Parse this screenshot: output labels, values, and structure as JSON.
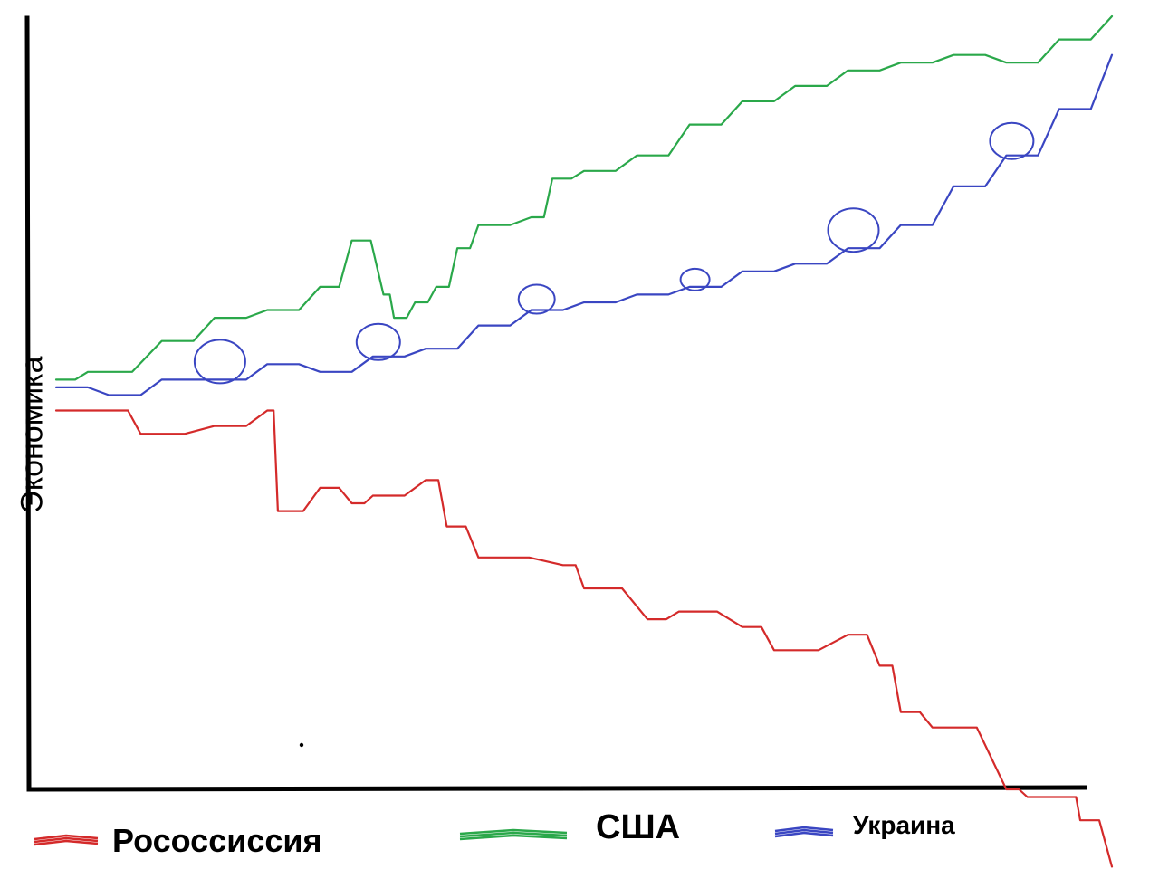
{
  "chart_data": {
    "type": "line",
    "title": "",
    "xlabel": "",
    "ylabel": "Экономика",
    "grid": false,
    "legend_position": "bottom",
    "series": [
      {
        "name": "Рососсиссия",
        "color": "#d42a2a",
        "x": [
          0,
          5,
          8,
          15,
          20,
          21,
          25,
          28,
          30,
          35,
          37,
          40,
          48,
          50,
          56,
          59,
          65,
          68,
          75,
          78,
          80,
          83,
          90,
          92,
          96,
          97,
          100
        ],
        "y": [
          49,
          49,
          46,
          47,
          49,
          36,
          39,
          37,
          38,
          40,
          34,
          30,
          29,
          26,
          22,
          23,
          21,
          18,
          20,
          16,
          10,
          8,
          0,
          -1,
          -1,
          -4,
          -10
        ]
      },
      {
        "name": "США",
        "color": "#2aa84a",
        "x": [
          0,
          3,
          10,
          15,
          20,
          25,
          28,
          31,
          32,
          34,
          36,
          38,
          40,
          45,
          47,
          50,
          55,
          60,
          65,
          70,
          75,
          80,
          85,
          90,
          95,
          100
        ],
        "y": [
          53,
          54,
          58,
          61,
          62,
          65,
          71,
          64,
          61,
          63,
          65,
          70,
          73,
          74,
          79,
          80,
          82,
          86,
          89,
          91,
          93,
          94,
          95,
          94,
          97,
          100
        ]
      },
      {
        "name": "Украина",
        "color": "#3a46c2",
        "x": [
          0,
          5,
          10,
          15,
          20,
          25,
          30,
          35,
          40,
          45,
          50,
          55,
          60,
          65,
          70,
          75,
          80,
          85,
          90,
          95,
          100
        ],
        "y": [
          52,
          51,
          53,
          53,
          55,
          54,
          56,
          57,
          60,
          62,
          63,
          64,
          65,
          67,
          68,
          70,
          73,
          78,
          82,
          88,
          95
        ]
      }
    ],
    "ylim": [
      -10,
      100
    ],
    "xlim": [
      0,
      100
    ]
  }
}
